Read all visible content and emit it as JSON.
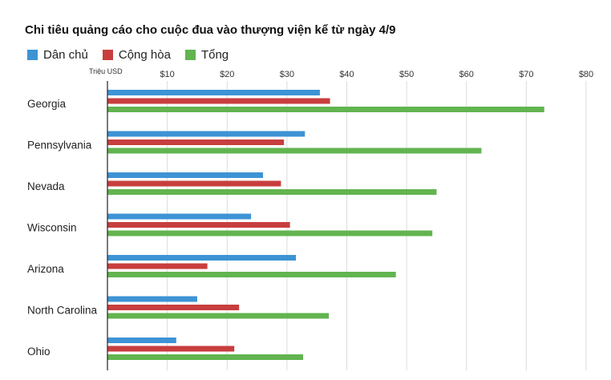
{
  "chart_data": {
    "type": "bar",
    "orientation": "horizontal",
    "title": "Chi tiêu quảng cáo cho cuộc đua vào thượng viện kể từ ngày 4/9",
    "unit_label": "Triệu USD",
    "categories": [
      "Georgia",
      "Pennsylvania",
      "Nevada",
      "Wisconsin",
      "Arizona",
      "North Carolina",
      "Ohio"
    ],
    "series": [
      {
        "name": "Dân chủ",
        "color": "#3d93d4",
        "values": [
          35.5,
          33,
          26,
          24,
          31.5,
          15,
          11.5
        ]
      },
      {
        "name": "Cộng hòa",
        "color": "#c83e3e",
        "values": [
          37.2,
          29.5,
          29,
          30.5,
          16.7,
          22,
          21.2
        ]
      },
      {
        "name": "Tổng",
        "color": "#62b450",
        "values": [
          73,
          62.5,
          55,
          54.3,
          48.2,
          37,
          32.7
        ]
      }
    ],
    "xlim": [
      0,
      80
    ],
    "xticks": [
      10,
      20,
      30,
      40,
      50,
      60,
      70,
      80
    ],
    "xtick_labels": [
      "$10",
      "$20",
      "$30",
      "$40",
      "$50",
      "$60",
      "$70",
      "$80"
    ],
    "grid": true,
    "legend_position": "top-left"
  }
}
